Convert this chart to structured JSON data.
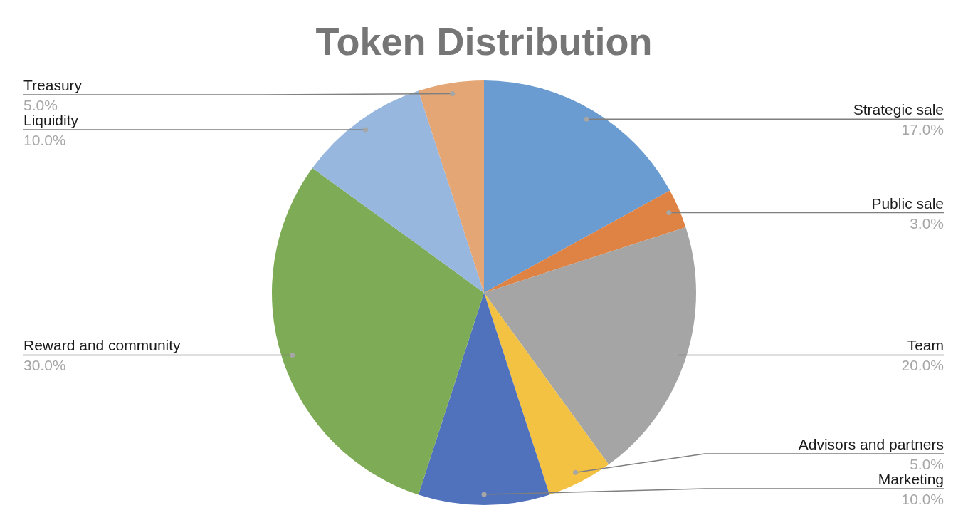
{
  "chart_data": {
    "type": "pie",
    "title": "Token Distribution",
    "categories": [
      "Strategic sale",
      "Public sale",
      "Team",
      "Advisors and partners",
      "Marketing",
      "Reward and community",
      "Liquidity",
      "Treasury"
    ],
    "values": [
      17,
      3,
      20,
      5,
      10,
      30,
      10,
      5
    ],
    "colors": [
      "#6a9bd1",
      "#df8344",
      "#a5a5a5",
      "#f4c242",
      "#5071bb",
      "#7eab55",
      "#97b7df",
      "#e4a674"
    ],
    "value_labels": [
      "17.0%",
      "3.0%",
      "20.0%",
      "5.0%",
      "10.0%",
      "30.0%",
      "10.0%",
      "5.0%"
    ]
  }
}
